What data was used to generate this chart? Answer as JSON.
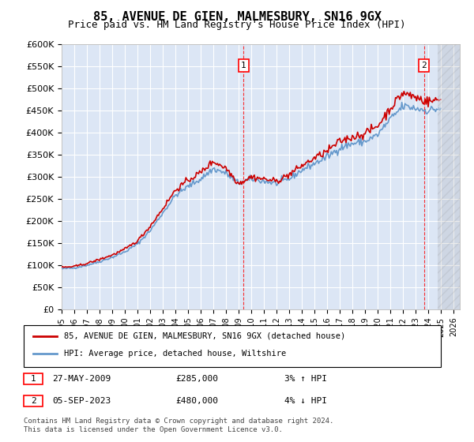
{
  "title": "85, AVENUE DE GIEN, MALMESBURY, SN16 9GX",
  "subtitle": "Price paid vs. HM Land Registry's House Price Index (HPI)",
  "title_fontsize": 11,
  "subtitle_fontsize": 10,
  "background_color": "#ffffff",
  "chart_bg_color": "#dce6f5",
  "ylim": [
    0,
    600000
  ],
  "yticks": [
    0,
    50000,
    100000,
    150000,
    200000,
    250000,
    300000,
    350000,
    400000,
    450000,
    500000,
    550000,
    600000
  ],
  "ytick_labels": [
    "£0",
    "£50K",
    "£100K",
    "£150K",
    "£200K",
    "£250K",
    "£300K",
    "£350K",
    "£400K",
    "£450K",
    "£500K",
    "£550K",
    "£600K"
  ],
  "xlim_start": 1995.0,
  "xlim_end": 2026.5,
  "hatch_start": 2024.75,
  "red_line_color": "#cc0000",
  "blue_line_color": "#6699cc",
  "marker1_x": 2009.4,
  "marker1_y": 285000,
  "marker1_label": "1",
  "marker2_x": 2023.67,
  "marker2_y": 480000,
  "marker2_label": "2",
  "sale1_date": "27-MAY-2009",
  "sale1_price": "£285,000",
  "sale1_hpi": "3% ↑ HPI",
  "sale2_date": "05-SEP-2023",
  "sale2_price": "£480,000",
  "sale2_hpi": "4% ↓ HPI",
  "legend_line1": "85, AVENUE DE GIEN, MALMESBURY, SN16 9GX (detached house)",
  "legend_line2": "HPI: Average price, detached house, Wiltshire",
  "footer": "Contains HM Land Registry data © Crown copyright and database right 2024.\nThis data is licensed under the Open Government Licence v3.0.",
  "hpi_years": [
    1995,
    1996,
    1997,
    1998,
    1999,
    2000,
    2001,
    2002,
    2003,
    2004,
    2005,
    2006,
    2007,
    2008,
    2009,
    2010,
    2011,
    2012,
    2013,
    2014,
    2015,
    2016,
    2017,
    2018,
    2019,
    2020,
    2021,
    2022,
    2023,
    2024,
    2025
  ],
  "hpi_values": [
    92000,
    94000,
    100000,
    108000,
    118000,
    130000,
    148000,
    178000,
    218000,
    258000,
    278000,
    295000,
    318000,
    308000,
    285000,
    295000,
    290000,
    285000,
    295000,
    315000,
    330000,
    345000,
    365000,
    375000,
    380000,
    395000,
    430000,
    460000,
    455000,
    450000,
    455000
  ],
  "prop_years": [
    1995,
    1996,
    1997,
    1998,
    1999,
    2000,
    2001,
    2002,
    2003,
    2004,
    2005,
    2006,
    2007,
    2008,
    2009,
    2010,
    2011,
    2012,
    2013,
    2014,
    2015,
    2016,
    2017,
    2018,
    2019,
    2020,
    2021,
    2022,
    2023,
    2024,
    2025
  ],
  "prop_values": [
    95000,
    97000,
    104000,
    113000,
    123000,
    136000,
    155000,
    188000,
    228000,
    270000,
    292000,
    310000,
    335000,
    320000,
    285000,
    300000,
    295000,
    290000,
    305000,
    325000,
    342000,
    358000,
    380000,
    390000,
    398000,
    415000,
    455000,
    490000,
    480000,
    470000,
    475000
  ]
}
